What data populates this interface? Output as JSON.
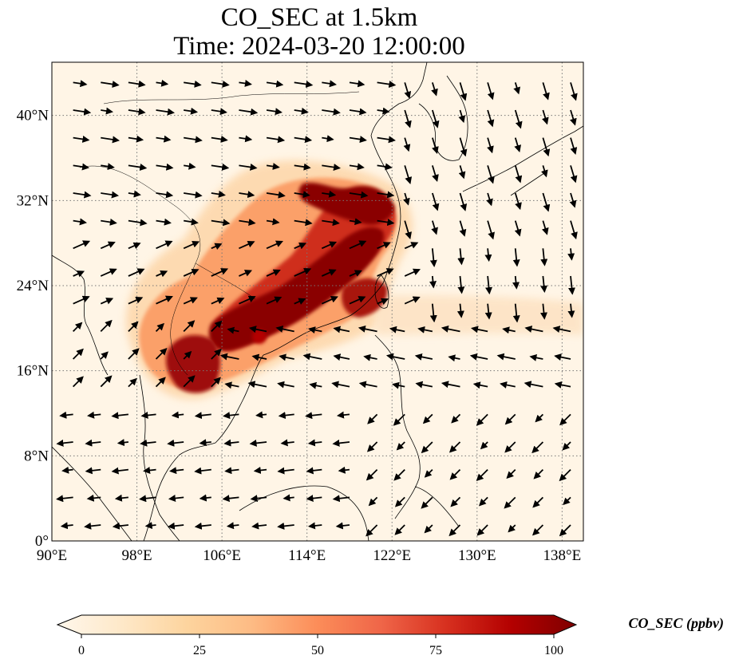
{
  "title": {
    "line1": "CO_SEC at 1.5km",
    "line2": "Time: 2024-03-20 12:00:00"
  },
  "map": {
    "lon_range": [
      90,
      140
    ],
    "lat_range": [
      0,
      45
    ],
    "x_ticks": [
      "90°E",
      "98°E",
      "106°E",
      "114°E",
      "122°E",
      "130°E",
      "138°E"
    ],
    "y_ticks": [
      "0°",
      "8°N",
      "16°N",
      "24°N",
      "32°N",
      "40°N"
    ],
    "gridlines": true,
    "gridline_style": "dotted",
    "features": [
      "coastlines",
      "country-borders",
      "wind-vectors",
      "CO_SEC-field"
    ]
  },
  "colorbar": {
    "label": "CO_SEC (ppbv)",
    "ticks": [
      "0",
      "25",
      "50",
      "75",
      "100"
    ],
    "range": [
      0,
      100
    ],
    "extend": "both",
    "colormap": "OrRd",
    "colors": [
      "#fff7ec",
      "#fee8c8",
      "#fdd49e",
      "#fdbb84",
      "#fc8d59",
      "#ef6548",
      "#d7301f",
      "#b30000",
      "#7f0000"
    ]
  }
}
